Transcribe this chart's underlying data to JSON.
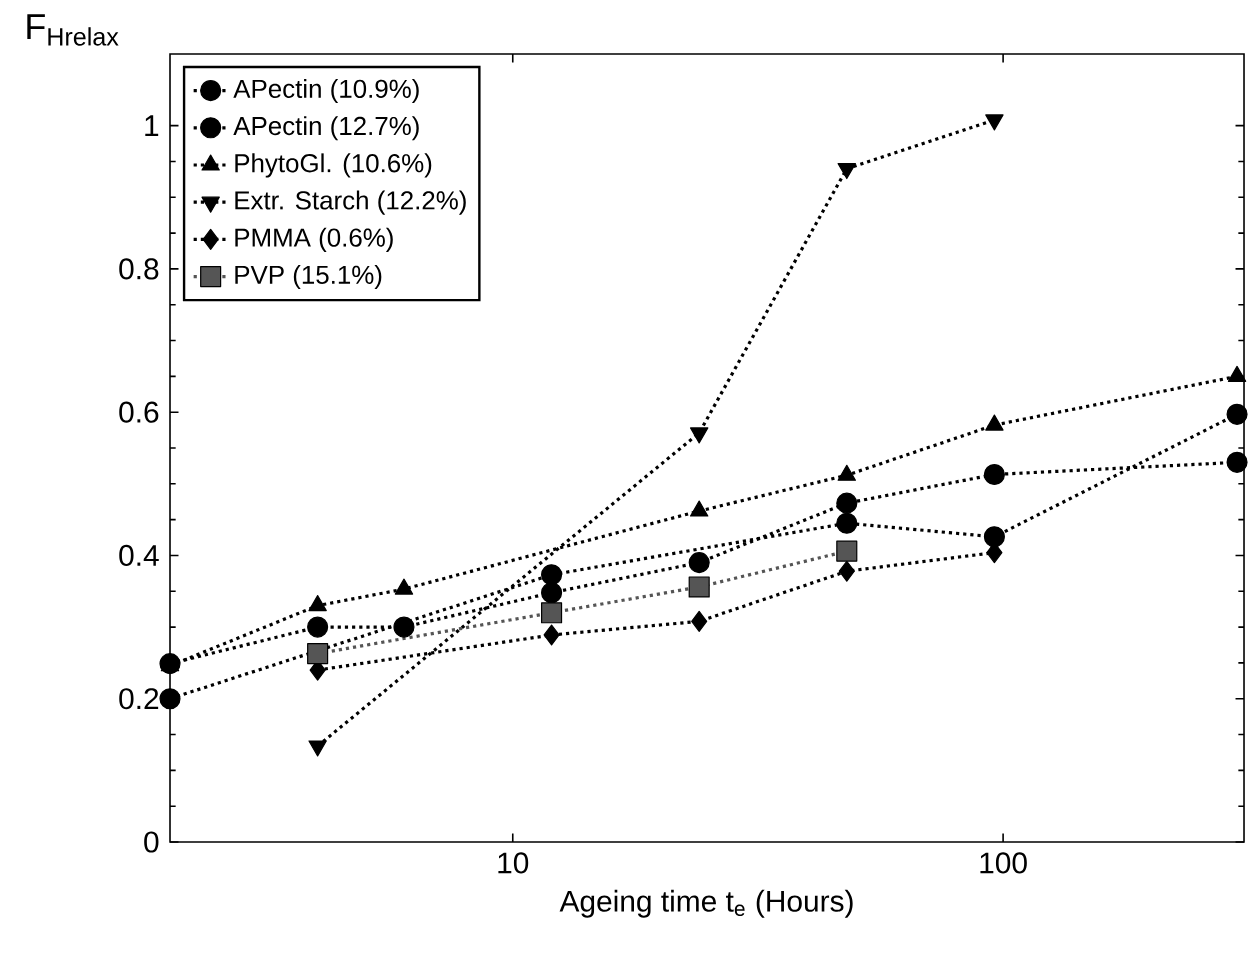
{
  "chart_data": {
    "type": "line",
    "ylabel": "F$_{Hrelax}$",
    "xlabel": "Ageing time t$_{e}$ (Hours)",
    "log": "x",
    "xlim": [
      2,
      310
    ],
    "xticks": [
      10,
      100
    ],
    "ylim": [
      0,
      1.1
    ],
    "yticks": [
      0,
      0.2,
      0.4,
      0.6,
      0.8,
      1
    ],
    "legend": "top left",
    "line_style": "dotted",
    "series": [
      {
        "name": "APectin (10.9%)",
        "color": "#000000",
        "marker": "circle",
        "x": [
          2,
          12,
          48,
          96,
          300
        ],
        "values": [
          0.2,
          0.373,
          0.445,
          0.426,
          0.597
        ]
      },
      {
        "name": "APectin (12.7%)",
        "color": "#000000",
        "marker": "circle",
        "x": [
          2,
          4,
          6,
          12,
          24,
          48,
          96,
          300
        ],
        "values": [
          0.249,
          0.3,
          0.3,
          0.348,
          0.39,
          0.473,
          0.513,
          0.53
        ]
      },
      {
        "name": "PhytoGl. (10.6%)",
        "color": "#000000",
        "marker": "triangle",
        "x": [
          2,
          4,
          6,
          24,
          48,
          96,
          300
        ],
        "values": [
          0.246,
          0.33,
          0.353,
          0.462,
          0.512,
          0.582,
          0.65
        ]
      },
      {
        "name": "Extr. Starch (12.2%)",
        "color": "#000000",
        "marker": "triangle down",
        "x": [
          4,
          24,
          48,
          96
        ],
        "values": [
          0.134,
          0.571,
          0.94,
          1.008
        ]
      },
      {
        "name": "PMMA (0.6%)",
        "color": "#000000",
        "marker": "diamond",
        "x": [
          4,
          12,
          24,
          48,
          96
        ],
        "values": [
          0.24,
          0.289,
          0.308,
          0.378,
          0.404
        ]
      },
      {
        "name": "PVP (15.1%)",
        "color": "#555555",
        "marker": "square",
        "x": [
          4,
          12,
          24,
          48
        ],
        "values": [
          0.263,
          0.32,
          0.356,
          0.406
        ]
      }
    ]
  }
}
